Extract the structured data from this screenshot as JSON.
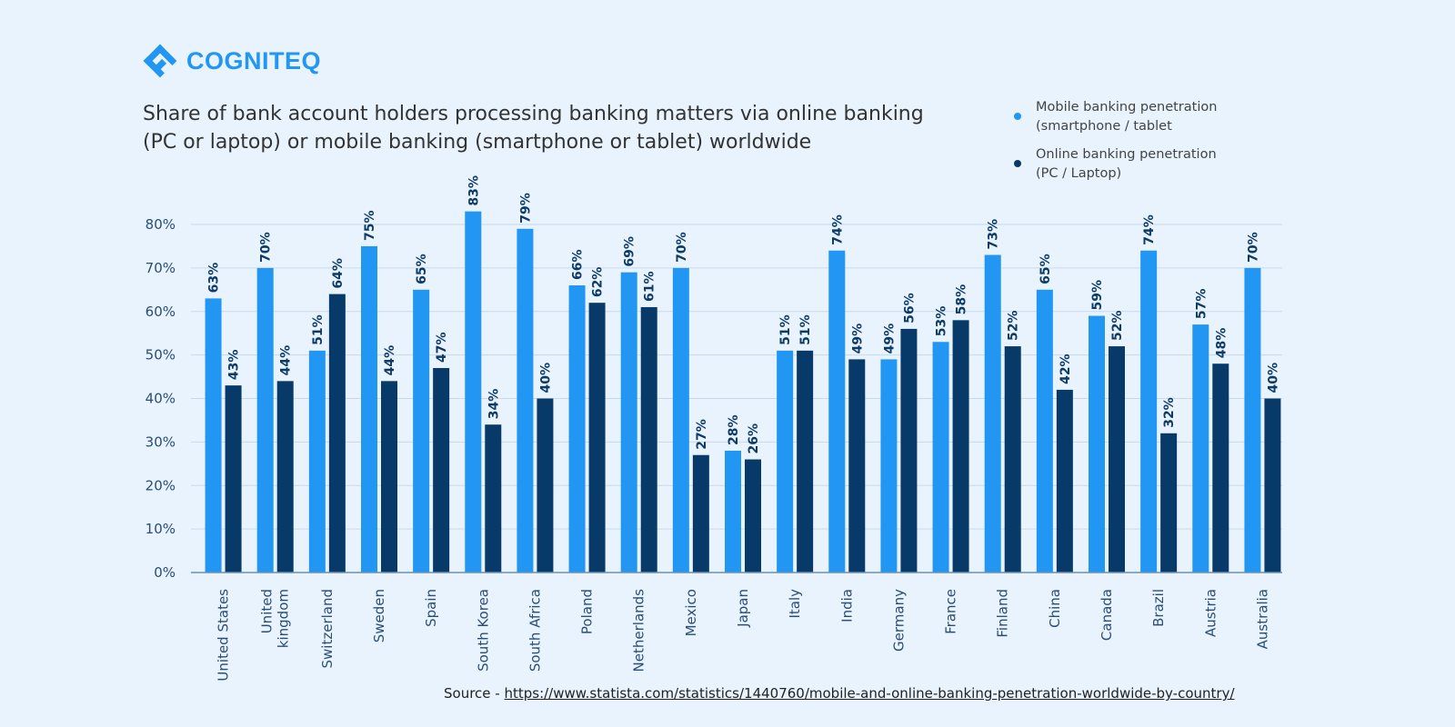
{
  "brand": {
    "name": "COGNITEQ",
    "color": "#2196f3"
  },
  "chart_data": {
    "type": "bar",
    "title": "Share of bank account holders processing banking matters via online banking (PC or laptop) or mobile banking (smartphone or tablet) worldwide",
    "categories": [
      "United States",
      "United kingdom",
      "Switzerland",
      "Sweden",
      "Spain",
      "South Korea",
      "South Africa",
      "Poland",
      "Netherlands",
      "Mexico",
      "Japan",
      "Italy",
      "India",
      "Germany",
      "France",
      "Finland",
      "China",
      "Canada",
      "Brazil",
      "Austria",
      "Australia"
    ],
    "series": [
      {
        "name": "Mobile banking penetration (smartphone / tablet",
        "color": "#2196f3",
        "values": [
          63,
          70,
          51,
          75,
          65,
          83,
          79,
          66,
          69,
          70,
          28,
          51,
          74,
          49,
          53,
          73,
          65,
          59,
          74,
          57,
          70
        ]
      },
      {
        "name": "Online banking penetration (PC / Laptop)",
        "color": "#083a69",
        "values": [
          43,
          44,
          64,
          44,
          47,
          34,
          40,
          62,
          61,
          27,
          26,
          51,
          49,
          56,
          58,
          52,
          42,
          52,
          32,
          48,
          40
        ]
      }
    ],
    "yticks": [
      "0%",
      "10%",
      "20%",
      "30%",
      "40%",
      "50%",
      "60%",
      "70%",
      "80%"
    ],
    "ylim": [
      0,
      80
    ],
    "grid": true,
    "data_labels": true,
    "legend_position": "top-right",
    "xlabel": "",
    "ylabel": ""
  },
  "source": {
    "label": "Source - ",
    "url": "https://www.statista.com/statistics/1440760/mobile-and-online-banking-penetration-worldwide-by-country/"
  }
}
